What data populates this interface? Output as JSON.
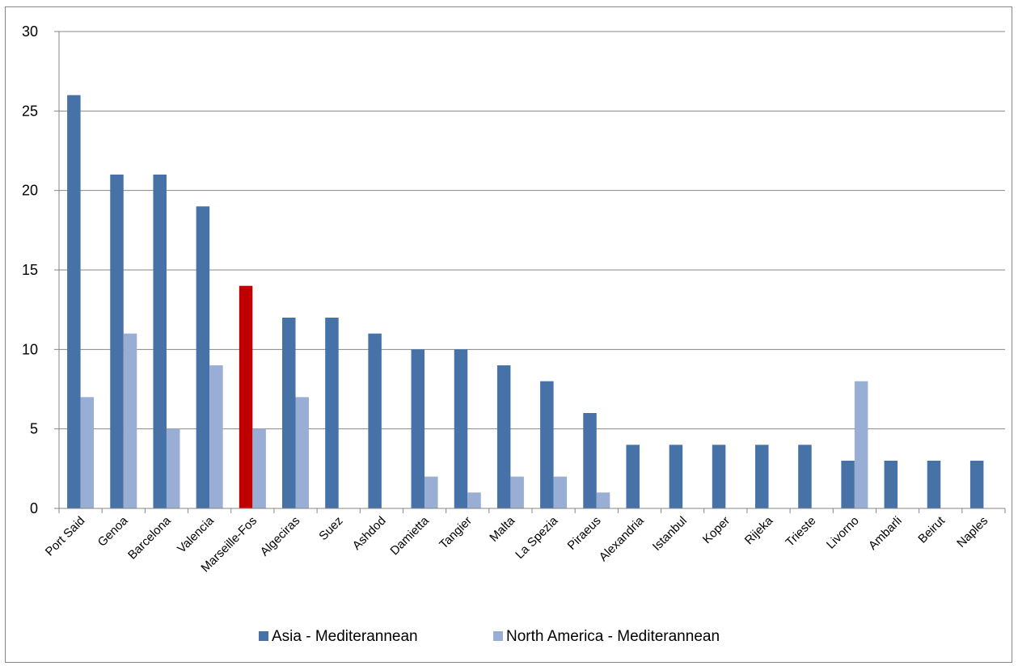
{
  "chart_data": {
    "type": "bar",
    "title": "",
    "xlabel": "",
    "ylabel": "",
    "ylim": [
      0,
      30
    ],
    "y_ticks": [
      0,
      5,
      10,
      15,
      20,
      25,
      30
    ],
    "grid": true,
    "legend_position": "bottom",
    "categories": [
      "Port Said",
      "Genoa",
      "Barcelona",
      "Valencia",
      "Marseille-Fos",
      "Algeciras",
      "Suez",
      "Ashdod",
      "Damietta",
      "Tangier",
      "Malta",
      "La Spezia",
      "Piraeus",
      "Alexandria",
      "Istanbul",
      "Koper",
      "Rijeka",
      "Trieste",
      "Livorno",
      "Ambarli",
      "Beirut",
      "Naples"
    ],
    "series": [
      {
        "name": "Asia - Mediterannean",
        "color": "#4672a8",
        "values": [
          26,
          21,
          21,
          19,
          14,
          12,
          12,
          11,
          10,
          10,
          9,
          8,
          6,
          4,
          4,
          4,
          4,
          4,
          3,
          3,
          3,
          3
        ]
      },
      {
        "name": "North America - Mediterannean",
        "color": "#98aed4",
        "values": [
          7,
          11,
          5,
          9,
          5,
          7,
          0,
          0,
          2,
          1,
          2,
          2,
          1,
          0,
          0,
          0,
          0,
          0,
          8,
          0,
          0,
          0
        ]
      }
    ],
    "highlight": {
      "category": "Marseille-Fos",
      "series": "Asia - Mediterannean",
      "color": "#c00000"
    }
  }
}
